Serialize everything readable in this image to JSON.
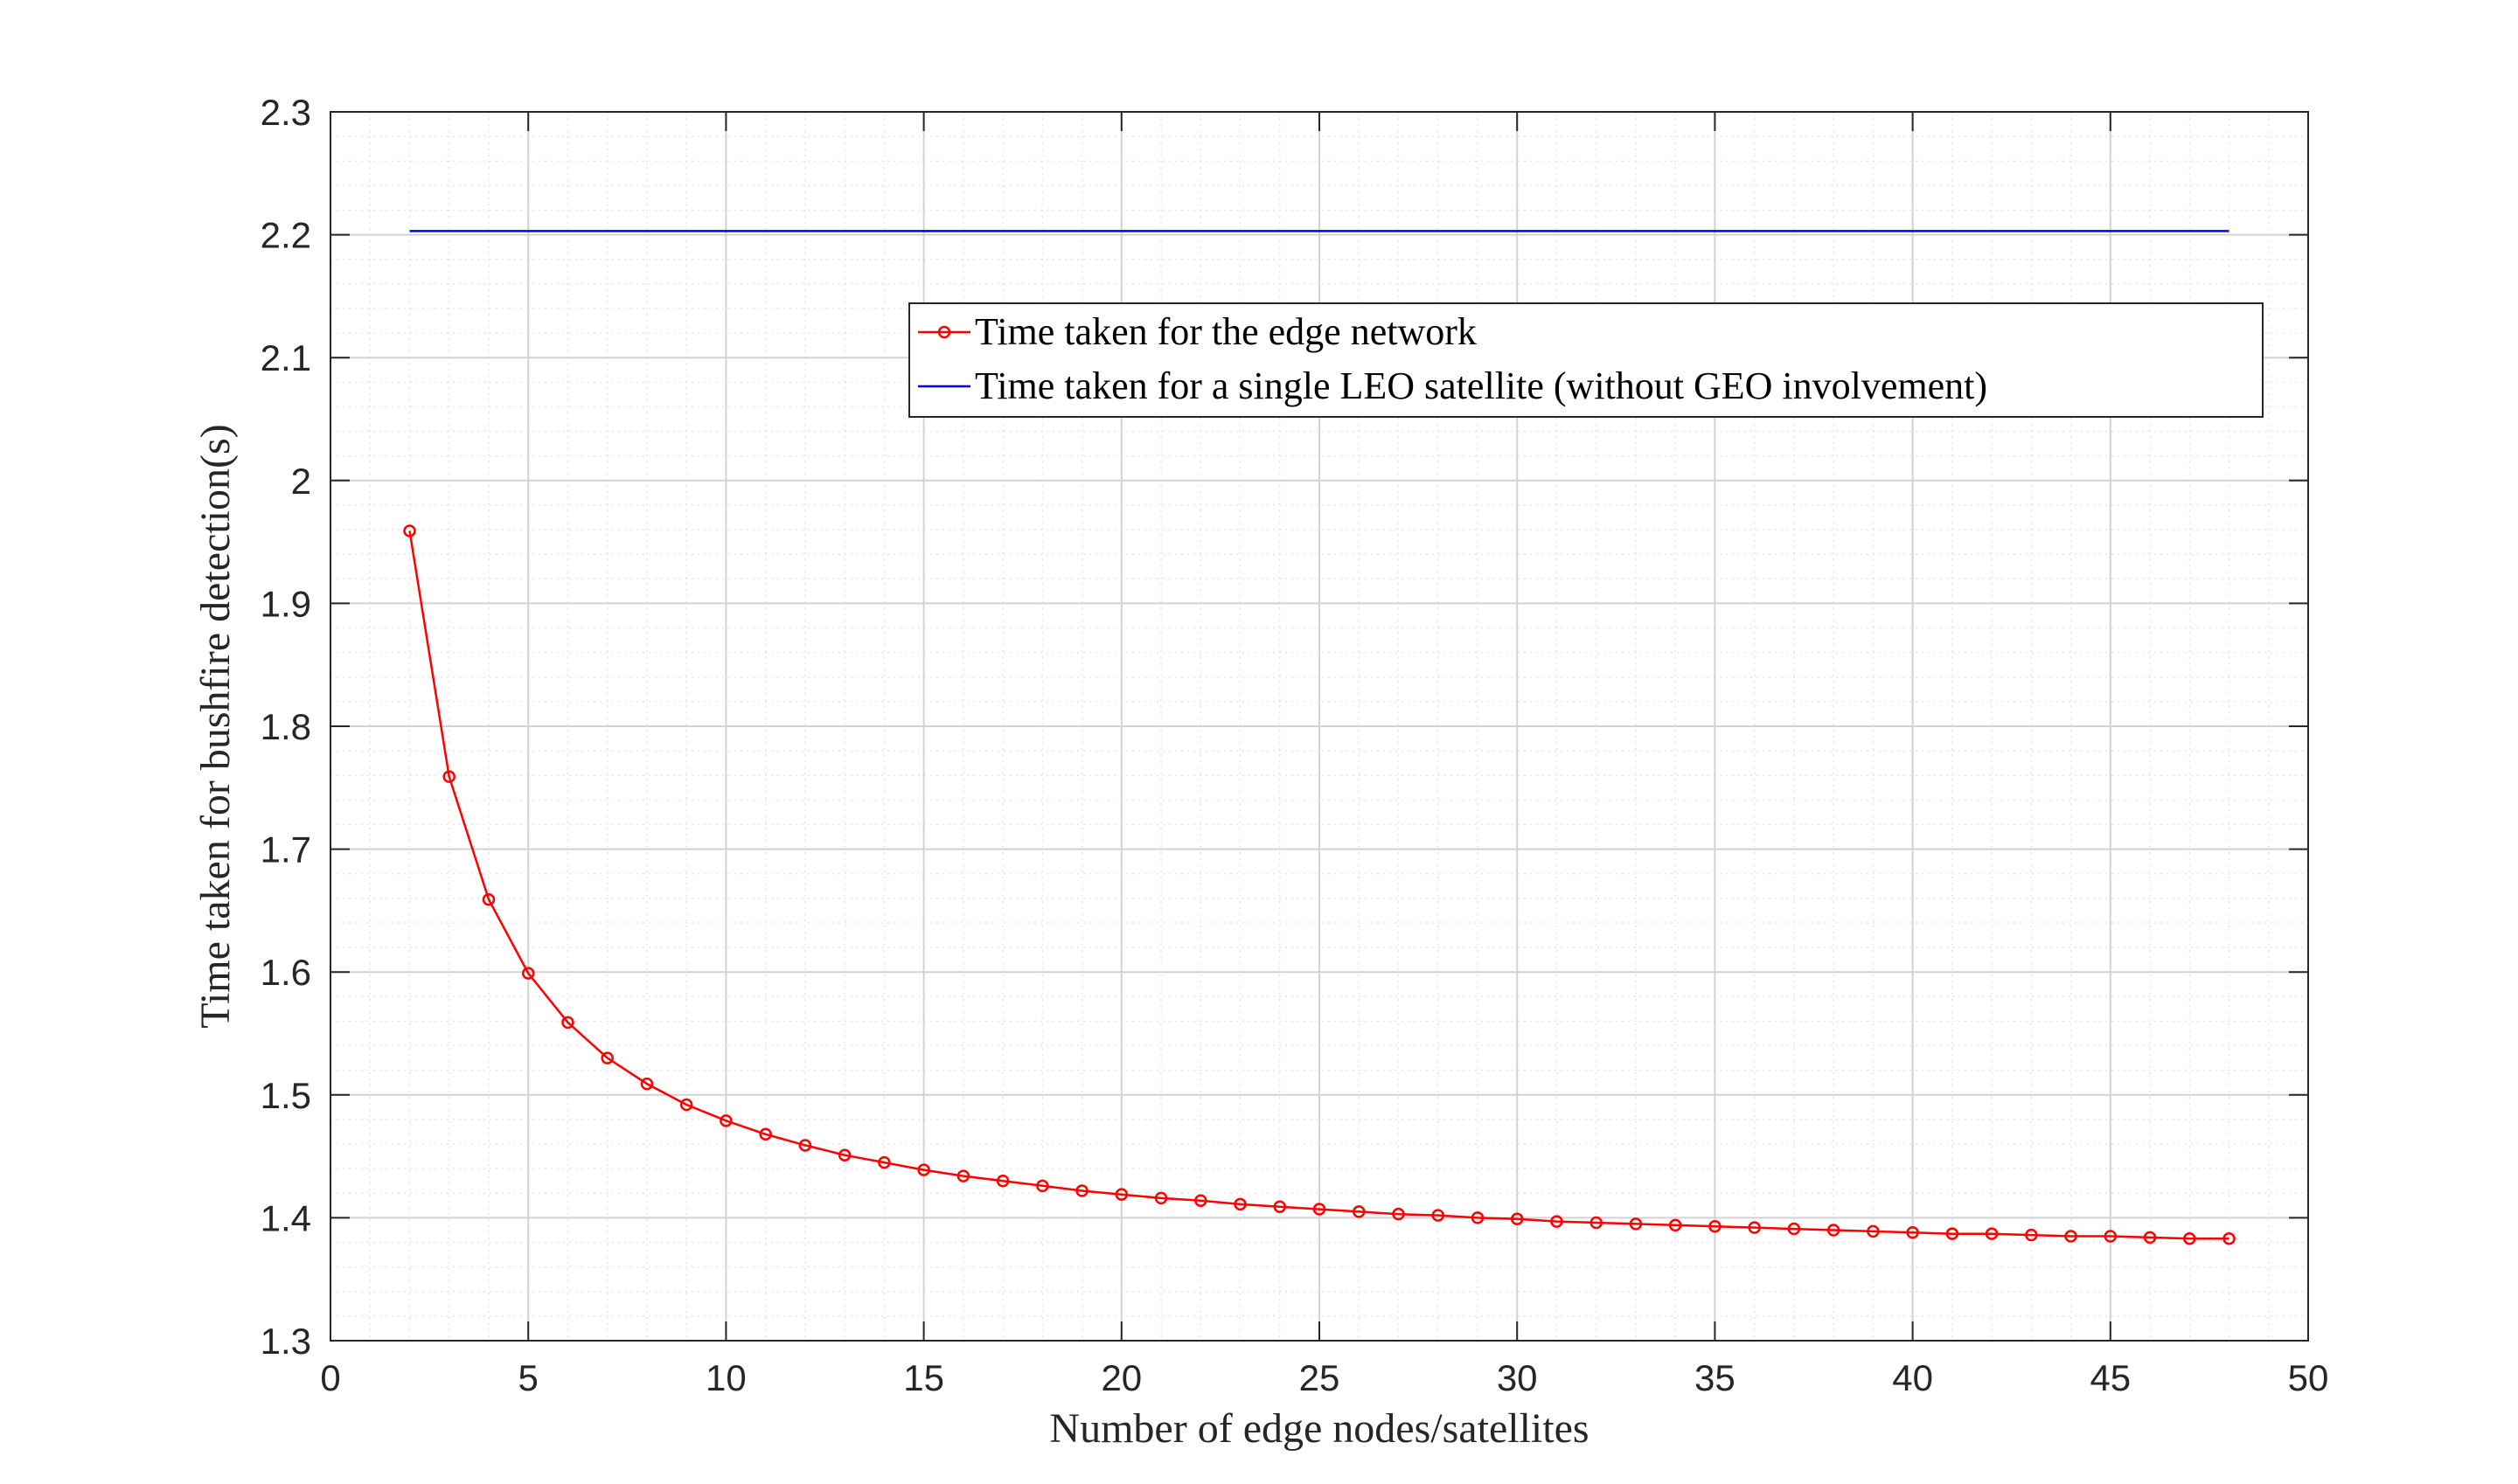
{
  "chart_data": {
    "type": "line",
    "title": "",
    "xlabel": "Number of edge nodes/satellites",
    "ylabel": "Time taken for bushfire detection(s)",
    "xlim": [
      0,
      50
    ],
    "ylim": [
      1.3,
      2.3
    ],
    "xticks": [
      0,
      5,
      10,
      15,
      20,
      25,
      30,
      35,
      40,
      45,
      50
    ],
    "xtick_labels": [
      "0",
      "5",
      "10",
      "15",
      "20",
      "25",
      "30",
      "35",
      "40",
      "45",
      "50"
    ],
    "yticks": [
      1.3,
      1.4,
      1.5,
      1.6,
      1.7,
      1.8,
      1.9,
      2.0,
      2.1,
      2.2,
      2.3
    ],
    "ytick_labels": [
      "1.3",
      "1.4",
      "1.5",
      "1.6",
      "1.7",
      "1.8",
      "1.9",
      "2",
      "2.1",
      "2.2",
      "2.3"
    ],
    "grid": true,
    "minor_grid": true,
    "legend_position": "upper-right",
    "series": [
      {
        "name": "Time taken for the edge network",
        "color": "#ff0000",
        "marker": "circle",
        "x": [
          2,
          3,
          4,
          5,
          6,
          7,
          8,
          9,
          10,
          11,
          12,
          13,
          14,
          15,
          16,
          17,
          18,
          19,
          20,
          21,
          22,
          23,
          24,
          25,
          26,
          27,
          28,
          29,
          30,
          31,
          32,
          33,
          34,
          35,
          36,
          37,
          38,
          39,
          40,
          41,
          42,
          43,
          44,
          45,
          46,
          47,
          48
        ],
        "y": [
          1.959,
          1.759,
          1.659,
          1.599,
          1.559,
          1.53,
          1.509,
          1.492,
          1.479,
          1.468,
          1.459,
          1.451,
          1.445,
          1.439,
          1.434,
          1.43,
          1.426,
          1.422,
          1.419,
          1.416,
          1.414,
          1.411,
          1.409,
          1.407,
          1.405,
          1.403,
          1.402,
          1.4,
          1.399,
          1.397,
          1.396,
          1.395,
          1.394,
          1.393,
          1.392,
          1.391,
          1.39,
          1.389,
          1.388,
          1.387,
          1.387,
          1.386,
          1.385,
          1.385,
          1.384,
          1.383,
          1.383
        ]
      },
      {
        "name": "Time taken for a single LEO satellite (without GEO involvement)",
        "color": "#0000ff",
        "marker": "none",
        "x": [
          2,
          48
        ],
        "y": [
          2.203,
          2.203
        ]
      }
    ]
  }
}
